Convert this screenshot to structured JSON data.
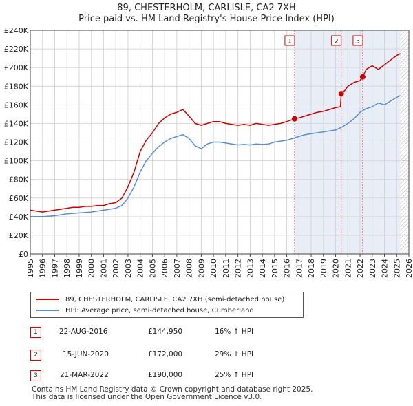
{
  "title_line1": "89, CHESTERHOLM, CARLISLE, CA2 7XH",
  "title_line2": "Price paid vs. HM Land Registry's House Price Index (HPI)",
  "colors": {
    "property": "#cc0000",
    "hpi": "#5b8fd0",
    "shade": "#e8eef8",
    "grid": "#d6d6d6",
    "marker_border": "#dd0000"
  },
  "legend": {
    "property_label": "89, CHESTERHOLM, CARLISLE, CA2 7XH (semi-detached house)",
    "hpi_label": "HPI: Average price, semi-detached house, Cumberland"
  },
  "transactions": [
    {
      "num": "1",
      "date": "22-AUG-2016",
      "price": "£144,950",
      "hpi": "16% ↑ HPI"
    },
    {
      "num": "2",
      "date": "15-JUN-2020",
      "price": "£172,000",
      "hpi": "29% ↑ HPI"
    },
    {
      "num": "3",
      "date": "21-MAR-2022",
      "price": "£190,000",
      "hpi": "25% ↑ HPI"
    }
  ],
  "footer_line1": "Contains HM Land Registry data © Crown copyright and database right 2025.",
  "footer_line2": "This data is licensed under the Open Government Licence v3.0.",
  "chart_data": {
    "type": "line",
    "xlim": [
      1995,
      2026
    ],
    "ylim": [
      0,
      240000
    ],
    "y_ticks": [
      0,
      20000,
      40000,
      60000,
      80000,
      100000,
      120000,
      140000,
      160000,
      180000,
      200000,
      220000,
      240000
    ],
    "y_tick_labels": [
      "£0",
      "£20K",
      "£40K",
      "£60K",
      "£80K",
      "£100K",
      "£120K",
      "£140K",
      "£160K",
      "£180K",
      "£200K",
      "£220K",
      "£240K"
    ],
    "x_ticks": [
      1995,
      1996,
      1997,
      1998,
      1999,
      2000,
      2001,
      2002,
      2003,
      2004,
      2005,
      2006,
      2007,
      2008,
      2009,
      2010,
      2011,
      2012,
      2013,
      2014,
      2015,
      2016,
      2017,
      2018,
      2019,
      2020,
      2021,
      2022,
      2023,
      2024,
      2025,
      2026
    ],
    "x_tick_labels": [
      "1995",
      "1996",
      "1997",
      "1998",
      "1999",
      "2000",
      "2001",
      "2002",
      "2003",
      "2004",
      "2005",
      "2006",
      "2007",
      "2008",
      "2009",
      "2010",
      "2011",
      "2012",
      "2013",
      "2014",
      "2015",
      "2016",
      "2017",
      "2018",
      "2019",
      "2020",
      "2021",
      "2022",
      "2023",
      "2024",
      "2025",
      "2026"
    ],
    "shaded_range": [
      2016.64,
      2025.3
    ],
    "hatched_range": [
      2025.3,
      2026
    ],
    "sales": [
      {
        "label": "1",
        "x": 2016.64,
        "y": 144950
      },
      {
        "label": "2",
        "x": 2020.46,
        "y": 172000
      },
      {
        "label": "3",
        "x": 2022.22,
        "y": 190000
      }
    ],
    "series": [
      {
        "name": "89, CHESTERHOLM, CARLISLE, CA2 7XH (semi-detached house)",
        "color": "#cc0000",
        "x": [
          1995.0,
          1995.5,
          1996.0,
          1996.5,
          1997.0,
          1997.5,
          1998.0,
          1998.5,
          1999.0,
          1999.5,
          2000.0,
          2000.5,
          2001.0,
          2001.5,
          2002.0,
          2002.5,
          2003.0,
          2003.5,
          2004.0,
          2004.5,
          2005.0,
          2005.5,
          2006.0,
          2006.5,
          2007.0,
          2007.5,
          2008.0,
          2008.5,
          2009.0,
          2009.5,
          2010.0,
          2010.5,
          2011.0,
          2011.5,
          2012.0,
          2012.5,
          2013.0,
          2013.5,
          2014.0,
          2014.5,
          2015.0,
          2015.5,
          2016.0,
          2016.64,
          2017.0,
          2017.5,
          2018.0,
          2018.5,
          2019.0,
          2019.5,
          2020.0,
          2020.4,
          2020.46,
          2020.8,
          2021.0,
          2021.5,
          2022.0,
          2022.22,
          2022.5,
          2023.0,
          2023.5,
          2024.0,
          2024.5,
          2025.0,
          2025.3
        ],
        "y": [
          47000,
          46000,
          45000,
          46000,
          47000,
          48000,
          49000,
          50000,
          50000,
          51000,
          51000,
          52000,
          52000,
          54000,
          55000,
          60000,
          72000,
          88000,
          110000,
          122000,
          130000,
          140000,
          146000,
          150000,
          152000,
          155000,
          148000,
          140000,
          138000,
          140000,
          142000,
          142000,
          140000,
          139000,
          138000,
          139000,
          138000,
          140000,
          139000,
          138000,
          139000,
          140000,
          142000,
          144950,
          146000,
          148000,
          150000,
          152000,
          153000,
          155000,
          157000,
          158000,
          172000,
          176000,
          180000,
          184000,
          186000,
          190000,
          198000,
          202000,
          198000,
          203000,
          208000,
          213000,
          215000
        ]
      },
      {
        "name": "HPI: Average price, semi-detached house, Cumberland",
        "color": "#5b8fd0",
        "x": [
          1995.0,
          1995.5,
          1996.0,
          1996.5,
          1997.0,
          1997.5,
          1998.0,
          1998.5,
          1999.0,
          1999.5,
          2000.0,
          2000.5,
          2001.0,
          2001.5,
          2002.0,
          2002.5,
          2003.0,
          2003.5,
          2004.0,
          2004.5,
          2005.0,
          2005.5,
          2006.0,
          2006.5,
          2007.0,
          2007.5,
          2008.0,
          2008.5,
          2009.0,
          2009.5,
          2010.0,
          2010.5,
          2011.0,
          2011.5,
          2012.0,
          2012.5,
          2013.0,
          2013.5,
          2014.0,
          2014.5,
          2015.0,
          2015.5,
          2016.0,
          2016.5,
          2017.0,
          2017.5,
          2018.0,
          2018.5,
          2019.0,
          2019.5,
          2020.0,
          2020.5,
          2021.0,
          2021.5,
          2022.0,
          2022.5,
          2023.0,
          2023.5,
          2024.0,
          2024.5,
          2025.0,
          2025.3
        ],
        "y": [
          40000,
          40000,
          40000,
          40500,
          41000,
          42000,
          43000,
          43500,
          44000,
          44500,
          45000,
          46000,
          47000,
          48000,
          49000,
          52000,
          60000,
          72000,
          88000,
          100000,
          108000,
          115000,
          120000,
          124000,
          126000,
          128000,
          124000,
          116000,
          113000,
          118000,
          120000,
          120000,
          119000,
          118000,
          117000,
          117500,
          117000,
          118000,
          117500,
          118000,
          120000,
          121000,
          122000,
          124000,
          126000,
          128000,
          129000,
          130000,
          131000,
          132000,
          133000,
          136000,
          140000,
          145000,
          152000,
          156000,
          158000,
          162000,
          160000,
          164000,
          168000,
          170000
        ]
      }
    ]
  }
}
